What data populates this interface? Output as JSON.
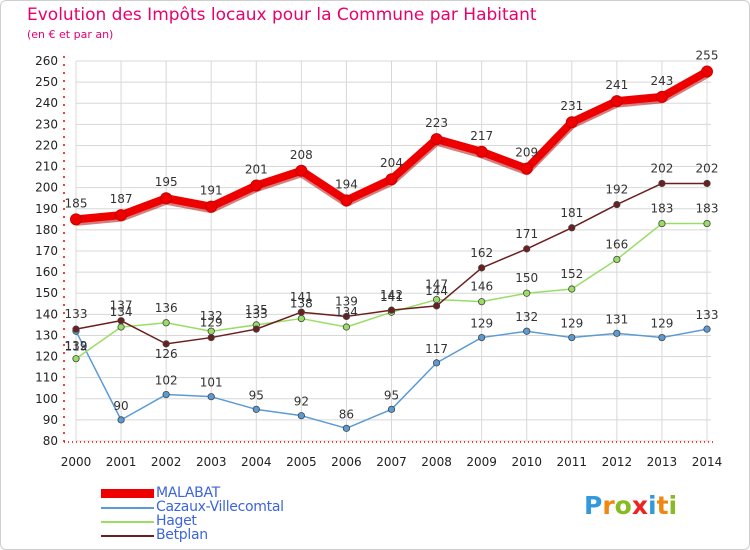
{
  "header": {
    "title": "Evolution des Impôts locaux pour la Commune par Habitant",
    "subtitle": "(en € et par an)"
  },
  "chart_data": {
    "type": "line",
    "title": "Evolution des Impôts locaux pour la Commune par Habitant",
    "subtitle": "(en € et par an)",
    "x": [
      "2000",
      "2001",
      "2002",
      "2003",
      "2004",
      "2005",
      "2006",
      "2007",
      "2008",
      "2009",
      "2010",
      "2011",
      "2012",
      "2013",
      "2014"
    ],
    "ylim": [
      80,
      260
    ],
    "yticks": [
      80,
      90,
      100,
      110,
      120,
      130,
      140,
      150,
      160,
      170,
      180,
      190,
      200,
      210,
      220,
      230,
      240,
      250,
      260
    ],
    "grid": true,
    "legend_position": "bottom-left",
    "series": [
      {
        "name": "MALABAT",
        "color": "#ee0000",
        "values": [
          185,
          187,
          195,
          191,
          201,
          208,
          194,
          204,
          223,
          217,
          209,
          231,
          241,
          243,
          255
        ]
      },
      {
        "name": "Cazaux-Villecomtal",
        "color": "#5b9bd5",
        "values": [
          132,
          90,
          102,
          101,
          95,
          92,
          86,
          95,
          117,
          129,
          132,
          129,
          131,
          129,
          133
        ]
      },
      {
        "name": "Haget",
        "color": "#99dd66",
        "values": [
          119,
          134,
          136,
          132,
          135,
          138,
          134,
          141,
          147,
          146,
          150,
          152,
          166,
          183,
          183
        ]
      },
      {
        "name": "Betplan",
        "color": "#6b1f1f",
        "values": [
          133,
          137,
          126,
          129,
          133,
          141,
          139,
          142,
          144,
          162,
          171,
          181,
          192,
          202,
          202
        ]
      }
    ]
  },
  "logo": {
    "letters": [
      "P",
      "r",
      "o",
      "x",
      "i",
      "t",
      "i"
    ],
    "colors": [
      "#3399dd",
      "#ee8811",
      "#88bb22",
      "#ee2222",
      "#3399dd",
      "#ee8811",
      "#88bb22"
    ]
  }
}
